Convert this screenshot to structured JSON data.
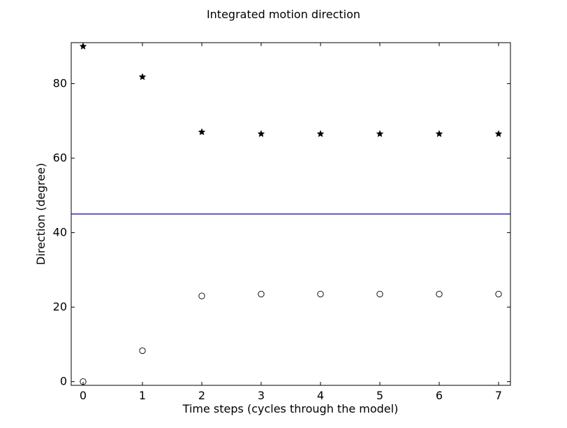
{
  "chart_data": {
    "type": "scatter",
    "title": "Integrated motion direction",
    "xlabel": "Time steps (cycles through the model)",
    "ylabel": "Direction (degree)",
    "xlim": [
      -0.2,
      7.2
    ],
    "ylim": [
      -1,
      91
    ],
    "xticks": [
      0,
      1,
      2,
      3,
      4,
      5,
      6,
      7
    ],
    "yticks": [
      0,
      20,
      40,
      60,
      80
    ],
    "grid": false,
    "series": [
      {
        "marker": "star",
        "color": "#000000",
        "x": [
          0,
          1,
          2,
          3,
          4,
          5,
          6,
          7
        ],
        "y": [
          90,
          81.8,
          67,
          66.5,
          66.5,
          66.5,
          66.5,
          66.5
        ]
      },
      {
        "marker": "open-circle",
        "color": "#000000",
        "x": [
          0,
          1,
          2,
          3,
          4,
          5,
          6,
          7
        ],
        "y": [
          0,
          8.3,
          23,
          23.5,
          23.5,
          23.5,
          23.5,
          23.5
        ]
      }
    ],
    "reference_lines": [
      {
        "orientation": "horizontal",
        "y": 45,
        "color": "#0000aa"
      }
    ]
  }
}
